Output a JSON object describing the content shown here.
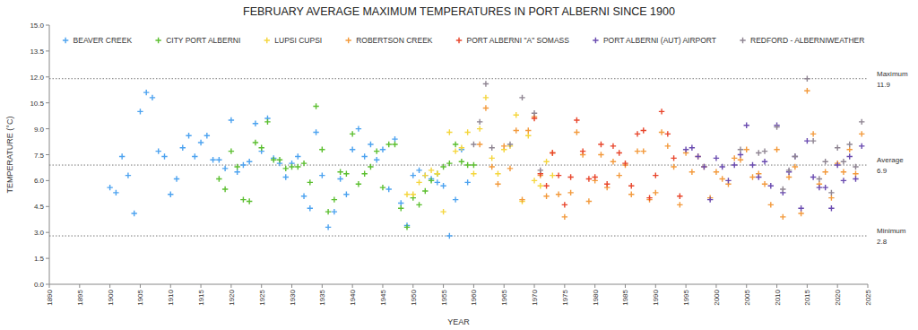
{
  "chart_data": {
    "type": "scatter",
    "title": "FEBRUARY AVERAGE MAXIMUM TEMPERATURES IN PORT ALBERNI SINCE 1900",
    "x_label": "YEAR",
    "y_label": "TEMPERATURE (°C)",
    "marker": "plus",
    "grid": false,
    "xlim": [
      1890,
      2025
    ],
    "xticks": [
      1890,
      1895,
      1900,
      1905,
      1910,
      1915,
      1920,
      1925,
      1930,
      1935,
      1940,
      1945,
      1950,
      1955,
      1960,
      1965,
      1970,
      1975,
      1980,
      1985,
      1990,
      1995,
      2000,
      2005,
      2010,
      2015,
      2020,
      2025
    ],
    "ylim": [
      0,
      15
    ],
    "yticks": [
      {
        "value": 0,
        "label": "0.0"
      },
      1.5,
      {
        "value": 3,
        "label": "3.0"
      },
      4.5,
      {
        "value": 6,
        "label": "6.0"
      },
      7.5,
      {
        "value": 9,
        "label": "9.0"
      },
      10.5,
      {
        "value": 12,
        "label": "12.0"
      },
      13.5,
      {
        "value": 15,
        "label": "15.0"
      }
    ],
    "annotations": [
      {
        "label": "Maximum",
        "value": 11.9
      },
      {
        "label": "Average",
        "value": 6.9
      },
      {
        "label": "Minimum",
        "value": 2.8
      }
    ],
    "series": [
      {
        "name": "BEAVER CREEK",
        "color": "#4da3f0",
        "x": [
          1900,
          1901,
          1902,
          1903,
          1904,
          1905,
          1906,
          1907,
          1908,
          1909,
          1910,
          1911,
          1912,
          1913,
          1914,
          1915,
          1916,
          1917,
          1918,
          1919,
          1920,
          1921,
          1922,
          1923,
          1924,
          1925,
          1926,
          1927,
          1928,
          1929,
          1930,
          1931,
          1932,
          1933,
          1934,
          1935,
          1936,
          1937,
          1938,
          1939,
          1940,
          1941,
          1942,
          1943,
          1944,
          1945,
          1946,
          1947,
          1948,
          1949,
          1950,
          1951,
          1952,
          1953,
          1954,
          1955,
          1956,
          1957,
          1958,
          1959
        ],
        "values": [
          5.6,
          5.3,
          7.4,
          6.3,
          4.1,
          10.0,
          11.1,
          10.8,
          7.7,
          7.4,
          5.2,
          6.1,
          7.9,
          8.6,
          7.4,
          8.2,
          8.6,
          7.2,
          7.2,
          6.7,
          9.5,
          6.5,
          6.9,
          7.1,
          9.3,
          7.7,
          9.6,
          7.3,
          7.0,
          6.2,
          7.0,
          7.4,
          5.1,
          4.4,
          8.8,
          6.3,
          3.3,
          4.2,
          6.1,
          5.2,
          7.8,
          9.0,
          7.4,
          8.1,
          7.2,
          7.8,
          5.5,
          8.4,
          4.7,
          3.4,
          6.3,
          6.6,
          6.3,
          6.1,
          5.9,
          5.7,
          2.8,
          4.9,
          7.8,
          5.9
        ]
      },
      {
        "name": "CITY PORT ALBERNI",
        "color": "#5cbf30",
        "x": [
          1918,
          1919,
          1920,
          1921,
          1922,
          1923,
          1924,
          1925,
          1926,
          1927,
          1928,
          1929,
          1930,
          1931,
          1932,
          1933,
          1934,
          1935,
          1936,
          1937,
          1938,
          1939,
          1940,
          1941,
          1942,
          1943,
          1944,
          1945,
          1946,
          1947,
          1948,
          1949,
          1950,
          1951,
          1952,
          1953,
          1954,
          1955,
          1956,
          1957,
          1958,
          1959,
          1960
        ],
        "values": [
          6.1,
          5.5,
          7.7,
          6.8,
          4.9,
          4.8,
          8.2,
          7.9,
          9.4,
          7.2,
          7.2,
          6.7,
          6.8,
          6.8,
          7.0,
          5.9,
          10.3,
          7.8,
          4.2,
          4.9,
          6.5,
          6.4,
          8.7,
          5.8,
          6.4,
          6.8,
          7.7,
          5.6,
          8.1,
          8.1,
          4.4,
          3.3,
          5.0,
          4.6,
          5.4,
          6.0,
          6.4,
          6.8,
          7.0,
          8.1,
          7.1,
          6.9,
          6.9
        ]
      },
      {
        "name": "LUPSI CUPSI",
        "color": "#f5d63d",
        "x": [
          1949,
          1950,
          1951,
          1952,
          1953,
          1954,
          1955,
          1956,
          1957,
          1958,
          1959,
          1960,
          1961,
          1962,
          1963,
          1964,
          1965,
          1966,
          1967,
          1968,
          1969,
          1970,
          1971,
          1972,
          1973
        ],
        "values": [
          5.2,
          5.2,
          5.9,
          6.3,
          6.6,
          6.4,
          4.2,
          8.8,
          7.7,
          7.9,
          8.8,
          6.4,
          9.0,
          10.8,
          7.3,
          6.4,
          7.8,
          8.0,
          9.8,
          4.8,
          8.6,
          6.0,
          5.7,
          7.1,
          6.3
        ]
      },
      {
        "name": "ROBERTSON CREEK",
        "color": "#f39a3c",
        "x": [
          1961,
          1962,
          1963,
          1964,
          1965,
          1966,
          1967,
          1968,
          1969,
          1970,
          1971,
          1972,
          1973,
          1974,
          1975,
          1976,
          1977,
          1978,
          1979,
          1980,
          1981,
          1982,
          1983,
          1984,
          1985,
          1986,
          1987,
          1988,
          1989,
          1990,
          1991,
          1992,
          1993,
          1994,
          1995,
          1996,
          1997,
          1998,
          1999,
          2000,
          2001,
          2002,
          2003,
          2004,
          2005,
          2006,
          2007,
          2008,
          2009,
          2010,
          2011,
          2012,
          2013,
          2014,
          2015,
          2016,
          2017,
          2018,
          2019,
          2020,
          2021,
          2022,
          2023,
          2024
        ],
        "values": [
          8.1,
          10.2,
          6.8,
          5.8,
          8.0,
          6.7,
          8.9,
          4.9,
          8.9,
          9.7,
          6.3,
          5.1,
          7.6,
          5.2,
          3.9,
          5.3,
          8.8,
          7.5,
          4.8,
          6.0,
          7.5,
          5.6,
          7.1,
          6.3,
          6.9,
          5.2,
          7.7,
          7.7,
          4.9,
          5.3,
          8.8,
          8.0,
          6.8,
          4.6,
          7.6,
          6.5,
          7.4,
          6.8,
          5.0,
          6.5,
          6.1,
          5.8,
          7.3,
          7.2,
          7.8,
          6.2,
          6.4,
          5.8,
          4.6,
          7.8,
          3.9,
          6.2,
          6.8,
          4.1,
          11.2,
          8.7,
          5.8,
          6.5,
          5.0,
          7.0,
          6.5,
          7.8,
          6.4,
          8.7
        ]
      },
      {
        "name": "PORT ALBERNI \"A\" SOMASS",
        "color": "#e8462c",
        "x": [
          1970,
          1971,
          1972,
          1973,
          1974,
          1975,
          1976,
          1977,
          1978,
          1979,
          1980,
          1981,
          1982,
          1983,
          1984,
          1985,
          1986,
          1987,
          1988,
          1989,
          1990,
          1991,
          1992,
          1993,
          1994
        ],
        "values": [
          9.6,
          6.4,
          5.7,
          7.6,
          6.3,
          4.6,
          6.2,
          9.5,
          7.7,
          6.1,
          6.2,
          8.1,
          5.8,
          8.0,
          7.6,
          7.0,
          5.7,
          8.7,
          8.9,
          5.0,
          6.3,
          10.0,
          8.7,
          7.3,
          5.1
        ]
      },
      {
        "name": "PORT ALBERNI (AUT) AIRPORT",
        "color": "#6a4bb0",
        "x": [
          1995,
          1996,
          1997,
          1998,
          1999,
          2000,
          2001,
          2002,
          2003,
          2004,
          2005,
          2006,
          2007,
          2008,
          2009,
          2010,
          2011,
          2012,
          2013,
          2014,
          2015,
          2016,
          2017,
          2018,
          2019,
          2020,
          2021,
          2022,
          2023,
          2024
        ],
        "values": [
          7.8,
          7.9,
          7.4,
          6.8,
          4.9,
          7.3,
          6.8,
          6.0,
          6.9,
          7.5,
          9.2,
          6.9,
          6.2,
          7.1,
          5.7,
          9.2,
          5.3,
          6.5,
          7.4,
          4.4,
          8.3,
          6.2,
          5.6,
          5.6,
          4.4,
          6.9,
          6.0,
          7.4,
          6.1,
          8.0
        ]
      },
      {
        "name": "REDFORD - ALBERNIWEATHER",
        "color": "#8f8592",
        "x": [
          1960,
          1961,
          1962,
          1963,
          1966,
          1968,
          1970,
          1971,
          2004,
          2007,
          2008,
          2010,
          2011,
          2012,
          2013,
          2015,
          2016,
          2017,
          2018,
          2019,
          2020,
          2021,
          2022,
          2023,
          2024
        ],
        "values": [
          8.1,
          9.4,
          11.6,
          7.9,
          8.1,
          10.8,
          9.9,
          6.6,
          7.8,
          7.6,
          7.7,
          9.1,
          5.5,
          6.6,
          7.4,
          11.9,
          8.3,
          6.1,
          7.1,
          5.3,
          7.9,
          7.1,
          8.1,
          6.8,
          9.4
        ]
      }
    ]
  }
}
